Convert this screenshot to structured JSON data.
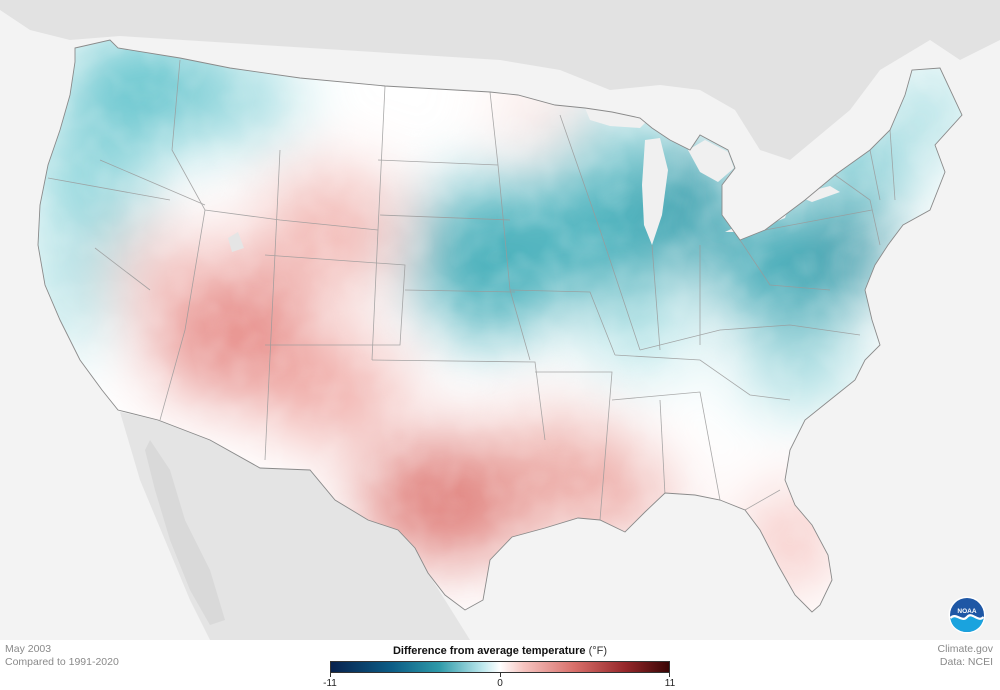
{
  "map": {
    "period": "May 2003",
    "baseline": "Compared to 1991-2020",
    "credit_site": "Climate.gov",
    "credit_data": "Data: NCEI",
    "logo_text": "NOAA"
  },
  "legend": {
    "title": "Difference from average temperature",
    "units": "(°F)",
    "min_label": "-11",
    "mid_label": "0",
    "max_label": "11",
    "range": [
      -11,
      11
    ],
    "colors": {
      "cold_extreme": "#08224e",
      "cold": "#2e9aa9",
      "neutral": "#ffffff",
      "warm": "#d86f6a",
      "warm_extreme": "#3a0606"
    }
  }
}
